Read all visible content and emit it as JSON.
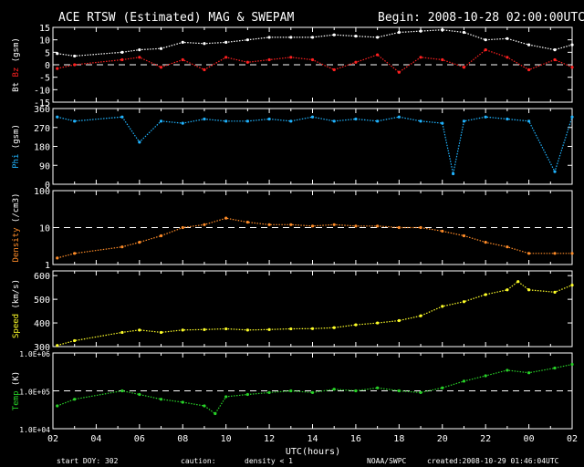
{
  "header": {
    "title": "ACE RTSW (Estimated) MAG & SWEPAM",
    "begin": "Begin: 2008-10-28 02:00:00UTC"
  },
  "footer": {
    "start_doy": "start DOY: 302",
    "caution": "caution:",
    "density_note": "density < 1",
    "agency": "NOAA/SWPC",
    "created": "created:2008-10-29 01:46:04UTC"
  },
  "colors": {
    "bt": "#ffffff",
    "bz": "#ff2020",
    "phi": "#20b4ff",
    "density": "#ff8c28",
    "speed": "#ffff28",
    "temp": "#28d228",
    "density_note": "#ff8c28"
  },
  "chart_data": {
    "type": "scatter",
    "title": "ACE RTSW (Estimated) MAG & SWEPAM",
    "xlabel": "UTC(hours)",
    "x_ticks": [
      "02",
      "04",
      "06",
      "08",
      "10",
      "12",
      "14",
      "16",
      "18",
      "20",
      "22",
      "00",
      "02"
    ],
    "x_range_hours": [
      0,
      24
    ],
    "panels": [
      {
        "id": "bz-bt",
        "ylabel_parts": [
          {
            "text": "Bt",
            "color": "#ffffff"
          },
          {
            "text": " ",
            "color": "#ffffff"
          },
          {
            "text": "Bz",
            "color": "#ff2020"
          },
          {
            "text": " (gsm)",
            "color": "#ffffff"
          }
        ],
        "scale": "linear",
        "ylim": [
          -15,
          15
        ],
        "ticks": [
          {
            "v": 15,
            "label": "15"
          },
          {
            "v": 10,
            "label": "10"
          },
          {
            "v": 5,
            "label": "5"
          },
          {
            "v": 0,
            "label": "0"
          },
          {
            "v": -5,
            "label": "-5"
          },
          {
            "v": -10,
            "label": "-10"
          },
          {
            "v": -15,
            "label": "-15"
          }
        ],
        "reference": 0,
        "series": [
          {
            "name": "Bt",
            "color": "#ffffff",
            "points": [
              [
                0.2,
                4.5
              ],
              [
                1,
                3.5
              ],
              [
                3.2,
                5
              ],
              [
                4,
                6
              ],
              [
                5,
                6.5
              ],
              [
                6,
                9
              ],
              [
                7,
                8.5
              ],
              [
                8,
                9
              ],
              [
                9,
                10
              ],
              [
                10,
                11
              ],
              [
                11,
                11
              ],
              [
                12,
                11
              ],
              [
                13,
                12
              ],
              [
                14,
                11.5
              ],
              [
                15,
                11
              ],
              [
                16,
                13
              ],
              [
                17,
                13.5
              ],
              [
                18,
                14
              ],
              [
                19,
                13
              ],
              [
                20,
                10
              ],
              [
                21,
                10.5
              ],
              [
                22,
                8
              ],
              [
                23.2,
                6
              ],
              [
                24,
                8
              ]
            ]
          },
          {
            "name": "Bz",
            "color": "#ff2020",
            "points": [
              [
                0.2,
                -1.5
              ],
              [
                1,
                0
              ],
              [
                3.2,
                2
              ],
              [
                4,
                3
              ],
              [
                5,
                -1
              ],
              [
                6,
                2
              ],
              [
                7,
                -2
              ],
              [
                8,
                3
              ],
              [
                9,
                1
              ],
              [
                10,
                2
              ],
              [
                11,
                3
              ],
              [
                12,
                2
              ],
              [
                13,
                -2
              ],
              [
                14,
                1
              ],
              [
                15,
                4
              ],
              [
                16,
                -3
              ],
              [
                17,
                3
              ],
              [
                18,
                2
              ],
              [
                19,
                -1
              ],
              [
                20,
                6
              ],
              [
                21,
                3
              ],
              [
                22,
                -2
              ],
              [
                23.2,
                2
              ],
              [
                24,
                -1
              ]
            ]
          }
        ]
      },
      {
        "id": "phi",
        "ylabel_parts": [
          {
            "text": "Phi",
            "color": "#20b4ff"
          },
          {
            "text": " (gsm)",
            "color": "#ffffff"
          }
        ],
        "scale": "linear",
        "ylim": [
          0,
          360
        ],
        "ticks": [
          {
            "v": 360,
            "label": "360"
          },
          {
            "v": 270,
            "label": "270"
          },
          {
            "v": 180,
            "label": "180"
          },
          {
            "v": 90,
            "label": "90"
          },
          {
            "v": 0,
            "label": "0"
          }
        ],
        "series": [
          {
            "name": "Phi",
            "color": "#20b4ff",
            "points": [
              [
                0.2,
                320
              ],
              [
                1,
                300
              ],
              [
                3.2,
                320
              ],
              [
                4,
                200
              ],
              [
                5,
                300
              ],
              [
                6,
                290
              ],
              [
                7,
                310
              ],
              [
                8,
                300
              ],
              [
                9,
                300
              ],
              [
                10,
                310
              ],
              [
                11,
                300
              ],
              [
                12,
                320
              ],
              [
                13,
                300
              ],
              [
                14,
                310
              ],
              [
                15,
                300
              ],
              [
                16,
                320
              ],
              [
                17,
                300
              ],
              [
                18,
                290
              ],
              [
                18.5,
                50
              ],
              [
                19,
                300
              ],
              [
                20,
                320
              ],
              [
                21,
                310
              ],
              [
                22,
                300
              ],
              [
                23.2,
                60
              ],
              [
                24,
                320
              ]
            ]
          }
        ]
      },
      {
        "id": "density",
        "ylabel_parts": [
          {
            "text": "Density",
            "color": "#ff8c28"
          },
          {
            "text": " (/cm3)",
            "color": "#ffffff"
          }
        ],
        "scale": "log",
        "ylim": [
          1,
          100
        ],
        "ticks": [
          {
            "v": 100,
            "label": "100"
          },
          {
            "v": 10,
            "label": "10"
          },
          {
            "v": 1,
            "label": "1"
          }
        ],
        "reference": 10,
        "series": [
          {
            "name": "Density",
            "color": "#ff8c28",
            "points": [
              [
                0.2,
                1.5
              ],
              [
                1,
                2
              ],
              [
                3.2,
                3
              ],
              [
                4,
                4
              ],
              [
                5,
                6
              ],
              [
                6,
                10
              ],
              [
                7,
                12
              ],
              [
                8,
                18
              ],
              [
                9,
                14
              ],
              [
                10,
                12
              ],
              [
                11,
                12
              ],
              [
                12,
                11
              ],
              [
                13,
                12
              ],
              [
                14,
                11
              ],
              [
                15,
                11
              ],
              [
                16,
                10
              ],
              [
                17,
                10
              ],
              [
                18,
                8
              ],
              [
                19,
                6
              ],
              [
                20,
                4
              ],
              [
                21,
                3
              ],
              [
                22,
                2
              ],
              [
                23.2,
                2
              ],
              [
                24,
                2
              ]
            ]
          }
        ]
      },
      {
        "id": "speed",
        "ylabel_parts": [
          {
            "text": "Speed",
            "color": "#ffff28"
          },
          {
            "text": " (km/s)",
            "color": "#ffffff"
          }
        ],
        "scale": "linear",
        "ylim": [
          300,
          620
        ],
        "ticks": [
          {
            "v": 600,
            "label": "600"
          },
          {
            "v": 500,
            "label": "500"
          },
          {
            "v": 400,
            "label": "400"
          },
          {
            "v": 300,
            "label": "300"
          }
        ],
        "series": [
          {
            "name": "Speed",
            "color": "#ffff28",
            "points": [
              [
                0.2,
                305
              ],
              [
                1,
                325
              ],
              [
                3.2,
                360
              ],
              [
                4,
                370
              ],
              [
                5,
                360
              ],
              [
                6,
                370
              ],
              [
                7,
                372
              ],
              [
                8,
                375
              ],
              [
                9,
                370
              ],
              [
                10,
                372
              ],
              [
                11,
                375
              ],
              [
                12,
                376
              ],
              [
                13,
                380
              ],
              [
                14,
                392
              ],
              [
                15,
                400
              ],
              [
                16,
                410
              ],
              [
                17,
                430
              ],
              [
                18,
                470
              ],
              [
                19,
                490
              ],
              [
                20,
                520
              ],
              [
                21,
                540
              ],
              [
                21.5,
                575
              ],
              [
                22,
                540
              ],
              [
                23.2,
                530
              ],
              [
                24,
                560
              ]
            ]
          }
        ]
      },
      {
        "id": "temp",
        "ylabel_parts": [
          {
            "text": "Temp",
            "color": "#28d228"
          },
          {
            "text": " (K)",
            "color": "#ffffff"
          }
        ],
        "scale": "log",
        "ylim": [
          10000,
          1000000
        ],
        "ticks": [
          {
            "v": 1000000,
            "label": "1.0E+06"
          },
          {
            "v": 100000,
            "label": "1.0E+05"
          },
          {
            "v": 10000,
            "label": "1.0E+04"
          }
        ],
        "reference": 100000,
        "series": [
          {
            "name": "Temp",
            "color": "#28d228",
            "points": [
              [
                0.2,
                40000
              ],
              [
                1,
                60000
              ],
              [
                3.2,
                100000
              ],
              [
                4,
                80000
              ],
              [
                5,
                60000
              ],
              [
                6,
                50000
              ],
              [
                7,
                40000
              ],
              [
                7.5,
                25000
              ],
              [
                8,
                70000
              ],
              [
                9,
                80000
              ],
              [
                10,
                90000
              ],
              [
                11,
                100000
              ],
              [
                12,
                90000
              ],
              [
                13,
                110000
              ],
              [
                14,
                100000
              ],
              [
                15,
                120000
              ],
              [
                16,
                100000
              ],
              [
                17,
                90000
              ],
              [
                18,
                120000
              ],
              [
                19,
                180000
              ],
              [
                20,
                250000
              ],
              [
                21,
                350000
              ],
              [
                22,
                300000
              ],
              [
                23.2,
                400000
              ],
              [
                24,
                500000
              ]
            ]
          }
        ]
      }
    ]
  }
}
